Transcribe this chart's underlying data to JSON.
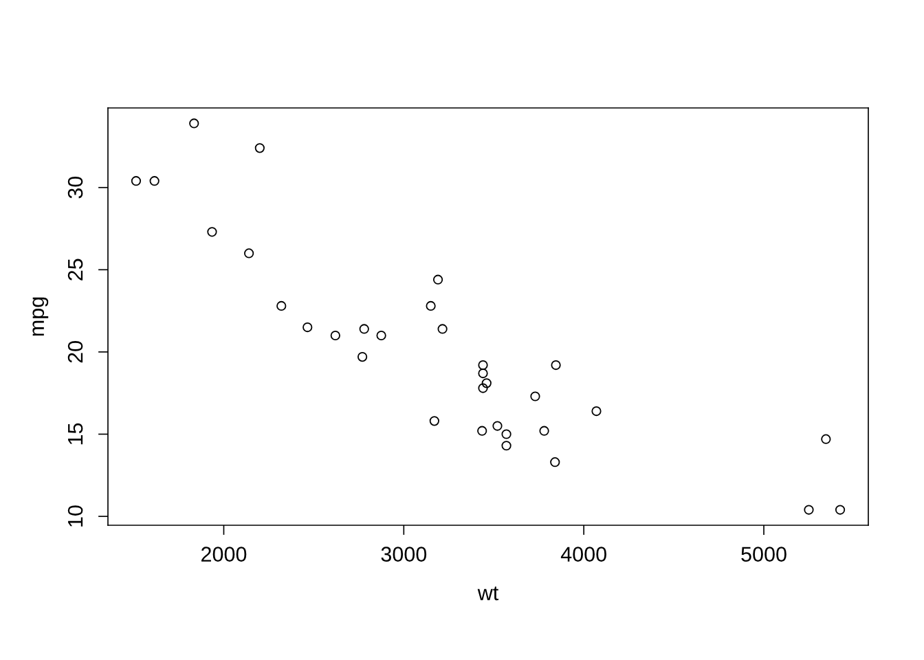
{
  "chart_data": {
    "type": "scatter",
    "xlabel": "wt",
    "ylabel": "mpg",
    "x": [
      2620,
      2875,
      2320,
      3215,
      3440,
      3460,
      3570,
      3190,
      3150,
      3440,
      3440,
      4070,
      3730,
      3780,
      5250,
      5424,
      5345,
      2200,
      1615,
      1835,
      2465,
      3520,
      3435,
      3840,
      3845,
      1935,
      2140,
      1513,
      3170,
      2770,
      3570,
      2780
    ],
    "series": [
      {
        "color": "#000000",
        "values": [
          21.0,
          21.0,
          22.8,
          21.4,
          18.7,
          18.1,
          14.3,
          24.4,
          22.8,
          19.2,
          17.8,
          16.4,
          17.3,
          15.2,
          10.4,
          10.4,
          14.7,
          32.4,
          30.4,
          33.9,
          21.5,
          15.5,
          15.2,
          13.3,
          19.2,
          27.3,
          26.0,
          30.4,
          15.8,
          19.7,
          15.0,
          21.4
        ]
      }
    ],
    "marker": "circle",
    "grid": false,
    "legend": false,
    "xlim": [
      1356.6,
      5580.4
    ],
    "ylim": [
      9.46,
      34.84
    ],
    "xticks": [
      2000,
      3000,
      4000,
      5000
    ],
    "yticks": [
      10,
      15,
      20,
      25,
      30
    ]
  }
}
